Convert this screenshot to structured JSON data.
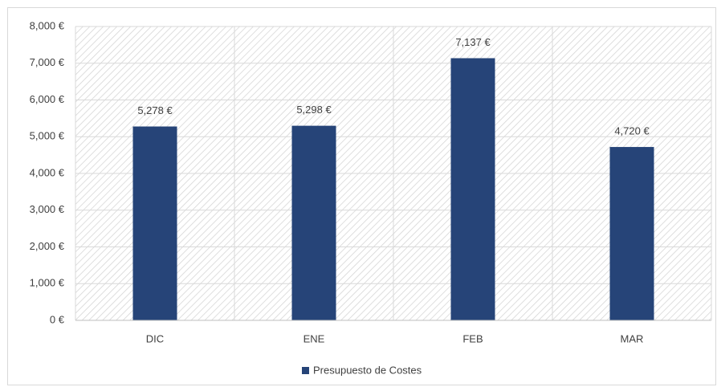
{
  "chart_data": {
    "type": "bar",
    "categories": [
      "DIC",
      "ENE",
      "FEB",
      "MAR"
    ],
    "series": [
      {
        "name": "Presupuesto de Costes",
        "color": "#264478",
        "values": [
          5278,
          5298,
          7137,
          4720
        ],
        "value_labels": [
          "5,278 €",
          "5,298 €",
          "7,137 €",
          "4,720 €"
        ]
      }
    ],
    "ylim": [
      0,
      8000
    ],
    "yticks": [
      {
        "value": 0,
        "label": "0 €"
      },
      {
        "value": 1000,
        "label": "1,000 €"
      },
      {
        "value": 2000,
        "label": "2,000 €"
      },
      {
        "value": 3000,
        "label": "3,000 €"
      },
      {
        "value": 4000,
        "label": "4,000 €"
      },
      {
        "value": 5000,
        "label": "5,000 €"
      },
      {
        "value": 6000,
        "label": "6,000 €"
      },
      {
        "value": 7000,
        "label": "7,000 €"
      },
      {
        "value": 8000,
        "label": "8,000 €"
      }
    ],
    "grid": true,
    "legend": "bottom"
  }
}
